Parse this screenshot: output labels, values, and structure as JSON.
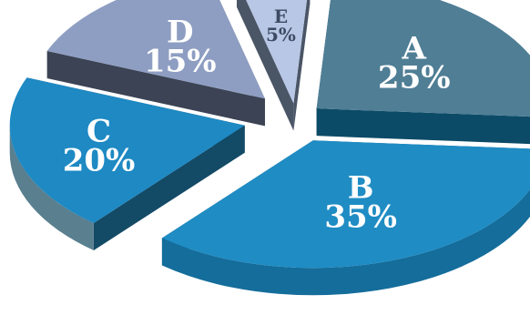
{
  "chart_data": {
    "type": "pie",
    "style": "3d-exploded",
    "title": "",
    "slices": [
      {
        "label": "A",
        "value": 25,
        "value_label": "25%",
        "color": "#4f7e95"
      },
      {
        "label": "B",
        "value": 35,
        "value_label": "35%",
        "color": "#1f8cc4"
      },
      {
        "label": "C",
        "value": 20,
        "value_label": "20%",
        "color": "#1e89c3"
      },
      {
        "label": "D",
        "value": 15,
        "value_label": "15%",
        "color": "#8e9ec2"
      },
      {
        "label": "E",
        "value": 5,
        "value_label": "5%",
        "color": "#b9c7e6"
      }
    ]
  }
}
